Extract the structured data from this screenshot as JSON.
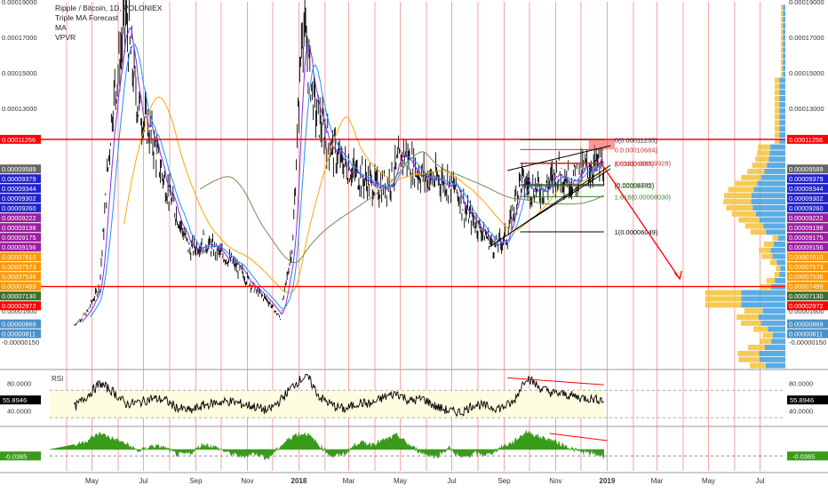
{
  "legend": {
    "symbol": "Ripple / Bitcoin, 1D, POLONIEX",
    "studies": [
      "Triple MA Forecast",
      "MA",
      "VPVR"
    ]
  },
  "colors": {
    "candle": "#000000",
    "grid_vertical": "#f08080",
    "level_red": "#ff0000",
    "ma_fast": "#8a2be2",
    "ma_mid": "#1e90ff",
    "ma_slow": "#ffa500",
    "ma_long": "#6b8e5a",
    "rsi_band": "#fffde0",
    "rsi_line": "#000000",
    "osc_fill": "#3a9a1a",
    "vp_blue": "#4aa3df",
    "vp_yellow": "#f5c542"
  },
  "chart_data": [
    {
      "type": "line",
      "name": "price",
      "title": "Ripple / Bitcoin, 1D, POLONIEX",
      "x_dates": [
        "2017-04-10",
        "2017-04-25",
        "2017-05-10",
        "2017-05-25",
        "2017-06-10",
        "2017-06-25",
        "2017-07-10",
        "2017-07-25",
        "2017-08-10",
        "2017-08-25",
        "2017-09-10",
        "2017-09-25",
        "2017-10-10",
        "2017-10-25",
        "2017-11-10",
        "2017-11-25",
        "2017-12-10",
        "2017-12-25",
        "2018-01-05",
        "2018-01-20",
        "2018-02-05",
        "2018-02-20",
        "2018-03-05",
        "2018-03-20",
        "2018-04-05",
        "2018-04-20",
        "2018-05-05",
        "2018-05-20",
        "2018-06-05",
        "2018-06-20",
        "2018-07-05",
        "2018-07-20",
        "2018-08-05",
        "2018-08-20",
        "2018-09-05",
        "2018-09-20",
        "2018-10-05",
        "2018-10-20",
        "2018-11-05",
        "2018-11-20",
        "2018-12-05",
        "2018-12-20"
      ],
      "y_values": [
        8e-06,
        1.5e-05,
        3e-05,
        0.00013,
        0.00018,
        0.00013,
        0.000115,
        9e-05,
        7e-05,
        5e-05,
        5.5e-05,
        5e-05,
        4.5e-05,
        3.8e-05,
        2.8e-05,
        2.2e-05,
        1.2e-05,
        5.5e-05,
        0.00018,
        0.00013,
        0.00011,
        0.0001,
        9.5e-05,
        9e-05,
        8.5e-05,
        9e-05,
        0.000105,
        9.5e-05,
        9e-05,
        9e-05,
        8.5e-05,
        7e-05,
        6.2e-05,
        5.2e-05,
        5.8e-05,
        9e-05,
        8.5e-05,
        8.5e-05,
        9.5e-05,
        9e-05,
        9.5e-05,
        9.8e-05
      ],
      "ylim": [
        -1.5e-05,
        0.00019
      ],
      "y_ticks": [
        "0.00019000",
        "0.00017000",
        "0.00015000",
        "0.00013000",
        "0.00011256",
        "0.00009589",
        "0.00009379",
        "0.00009344",
        "0.00009302",
        "0.00009260",
        "0.00009222",
        "0.00009198",
        "0.00009175",
        "0.00009156",
        "0.00007610",
        "0.00007573",
        "0.00007536",
        "0.00007499",
        "0.00007130",
        "0.00002972",
        "0.00002400",
        "0.00001600",
        "0.00000869",
        "0.00000811",
        "-0.00000150"
      ],
      "x_ticks": [
        "May",
        "Jul",
        "Sep",
        "Nov",
        "2018",
        "Mar",
        "May",
        "Jul",
        "Sep",
        "Nov",
        "2019",
        "Mar",
        "May",
        "Jul"
      ],
      "horizontal_levels": [
        "0.00011256",
        "0.00002972"
      ],
      "fib_labels": [
        "0(0.00011235)",
        "0.0.00010684)",
        "1.618(0.00009928)",
        "(0.00009895)",
        "(0.00008705)",
        "(0.00008642)",
        "1.618(0.00008030)",
        "1(0.00006049)"
      ],
      "grid": true
    },
    {
      "type": "line",
      "name": "RSI",
      "title": "RSI",
      "current_value": "55.8946",
      "y_ticks": [
        "80.0000",
        "40.0000"
      ],
      "ylim": [
        20,
        95
      ],
      "values": [
        45,
        62,
        80,
        68,
        50,
        52,
        58,
        56,
        44,
        40,
        48,
        52,
        54,
        50,
        46,
        40,
        56,
        78,
        92,
        60,
        48,
        42,
        52,
        50,
        60,
        66,
        54,
        58,
        46,
        40,
        38,
        50,
        46,
        44,
        52,
        90,
        74,
        66,
        64,
        60,
        58,
        56
      ]
    },
    {
      "type": "area",
      "name": "oscillator",
      "current_value": "-0.0365",
      "values": [
        0.02,
        0.05,
        0.09,
        0.06,
        0.03,
        -0.01,
        0.02,
        0.01,
        -0.03,
        -0.02,
        0.03,
        0.01,
        -0.02,
        -0.04,
        -0.02,
        -0.05,
        0.02,
        0.08,
        0.09,
        0.02,
        -0.04,
        -0.02,
        0.04,
        0.03,
        0.05,
        0.08,
        0.02,
        -0.02,
        -0.04,
        0.01,
        -0.05,
        -0.02,
        -0.03,
        0.01,
        0.04,
        0.1,
        0.07,
        0.05,
        0.02,
        -0.01,
        -0.02,
        -0.0365
      ]
    }
  ]
}
